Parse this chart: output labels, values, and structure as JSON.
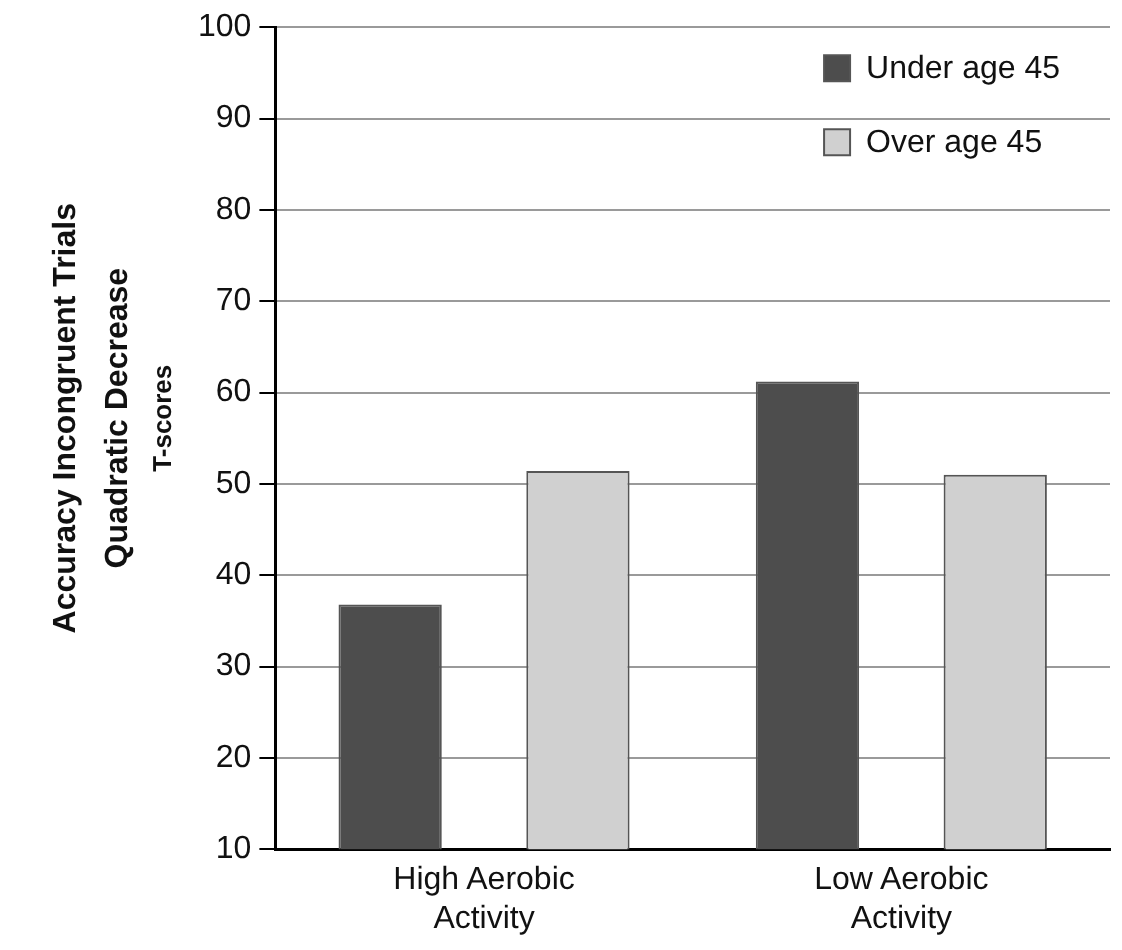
{
  "chart_data": {
    "type": "bar",
    "ylabel": "Accuracy Incongruent Trials\nQuadratic Decrease\nT-scores",
    "categories": [
      "High Aerobic Activity",
      "Low Aerobic Activity"
    ],
    "series": [
      {
        "name": "Under age 45",
        "color": "#4d4d4d",
        "values": [
          36.8,
          61.2
        ]
      },
      {
        "name": "Over age 45",
        "color": "#d0d0d0",
        "values": [
          51.4,
          51
        ]
      }
    ],
    "ylim": [
      10,
      100
    ],
    "yticks": [
      10,
      20,
      30,
      40,
      50,
      60,
      70,
      80,
      90,
      100
    ],
    "grid": "y",
    "legend": "top right"
  }
}
